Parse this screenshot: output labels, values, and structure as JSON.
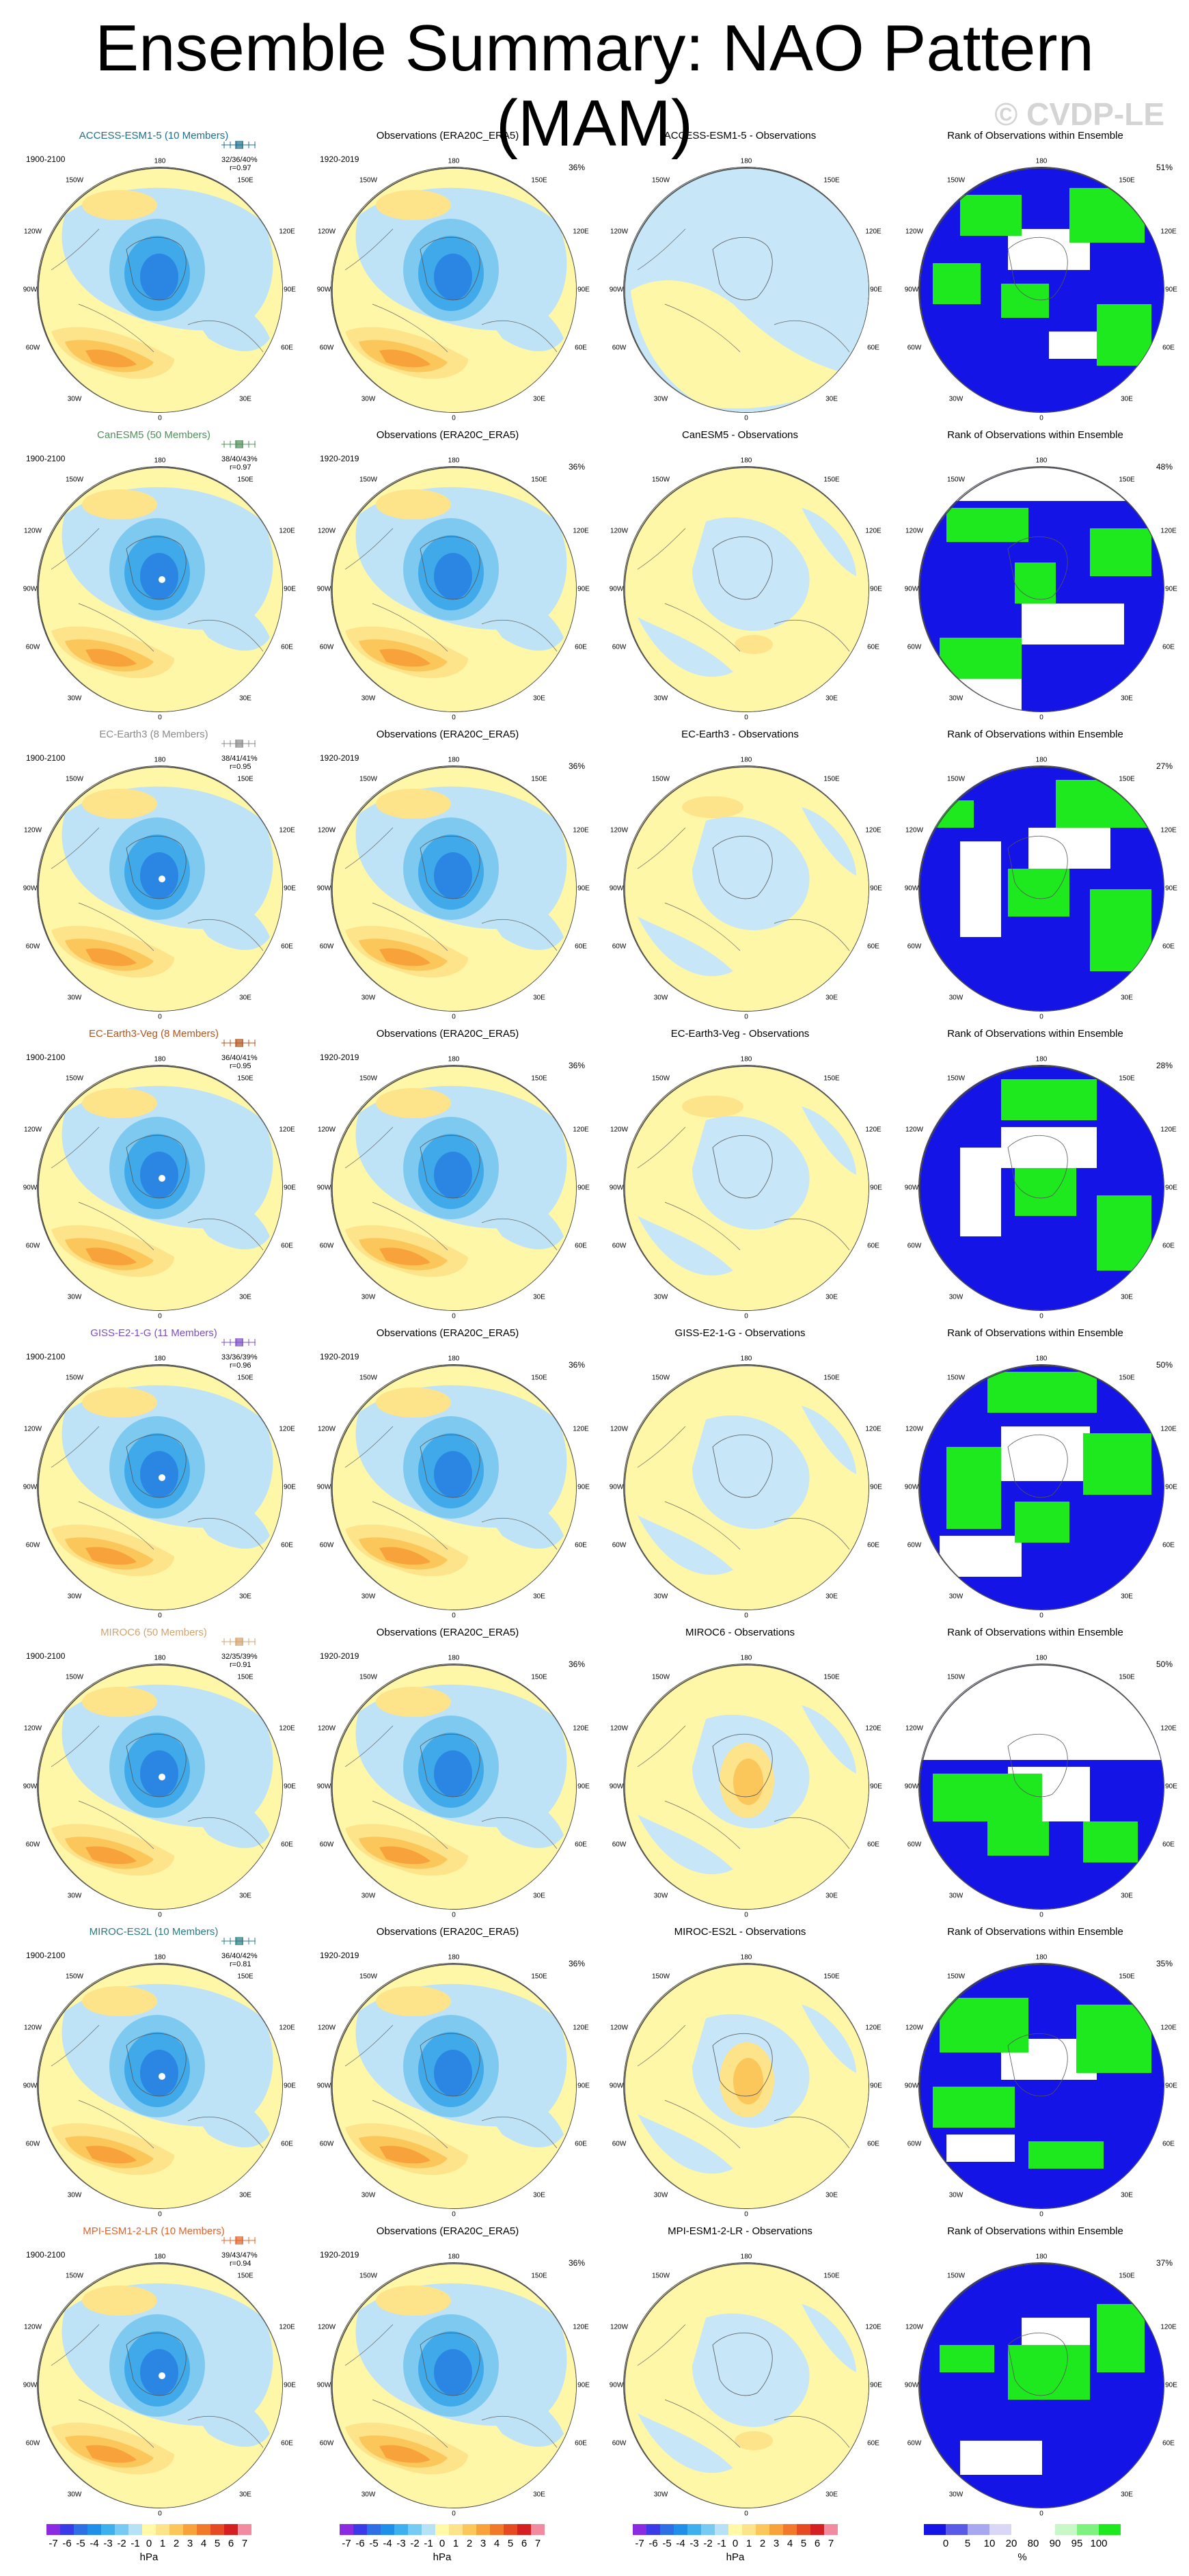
{
  "title": "Ensemble Summary: NAO Pattern (MAM)",
  "watermark": "© CVDP-LE",
  "axis_labels": [
    "180",
    "150W",
    "150E",
    "120W",
    "120E",
    "90W",
    "90E",
    "60W",
    "60E",
    "30W",
    "30E",
    "0"
  ],
  "common": {
    "obs_title": "Observations (ERA20C_ERA5)",
    "obs_years": "1920-2019",
    "obs_pct": "36%",
    "ens_years": "1900-2100",
    "rank_title": "Rank of Observations within Ensemble"
  },
  "rows": [
    {
      "model_title": "ACCESS-ESM1-5 (10 Members)",
      "title_color": "#1f6f8b",
      "stats1": "32/36/40%",
      "stats2": "r=0.97",
      "whisk_color": "#1f6f8b",
      "diff_title": "ACCESS-ESM1-5 - Observations",
      "rank_pct": "51%"
    },
    {
      "model_title": "CanESM5 (50 Members)",
      "title_color": "#4f8f5a",
      "stats1": "38/40/43%",
      "stats2": "r=0.97",
      "whisk_color": "#4f8f5a",
      "diff_title": "CanESM5 - Observations",
      "rank_pct": "48%"
    },
    {
      "model_title": "EC-Earth3 (8 Members)",
      "title_color": "#8a8a8a",
      "stats1": "38/41/41%",
      "stats2": "r=0.95",
      "whisk_color": "#8a8a8a",
      "diff_title": "EC-Earth3 - Observations",
      "rank_pct": "27%"
    },
    {
      "model_title": "EC-Earth3-Veg (8 Members)",
      "title_color": "#b4541c",
      "stats1": "36/40/41%",
      "stats2": "r=0.95",
      "whisk_color": "#b4541c",
      "diff_title": "EC-Earth3-Veg - Observations",
      "rank_pct": "28%"
    },
    {
      "model_title": "GISS-E2-1-G (11 Members)",
      "title_color": "#7a4fc4",
      "stats1": "33/36/39%",
      "stats2": "r=0.96",
      "whisk_color": "#7a4fc4",
      "diff_title": "GISS-E2-1-G - Observations",
      "rank_pct": "50%"
    },
    {
      "model_title": "MIROC6 (50 Members)",
      "title_color": "#d2a36e",
      "stats1": "32/35/39%",
      "stats2": "r=0.91",
      "whisk_color": "#d2a36e",
      "diff_title": "MIROC6 - Observations",
      "rank_pct": "50%"
    },
    {
      "model_title": "MIROC-ES2L (10 Members)",
      "title_color": "#2a7c84",
      "stats1": "36/40/42%",
      "stats2": "r=0.81",
      "whisk_color": "#2a7c84",
      "diff_title": "MIROC-ES2L - Observations",
      "rank_pct": "35%"
    },
    {
      "model_title": "MPI-ESM1-2-LR (10 Members)",
      "title_color": "#e0632b",
      "stats1": "39/43/47%",
      "stats2": "r=0.94",
      "whisk_color": "#e0632b",
      "diff_title": "MPI-ESM1-2-LR - Observations",
      "rank_pct": "37%"
    }
  ],
  "colorbar_hpa": {
    "colors": [
      "#8a2be2",
      "#3a3ae8",
      "#2f6fe6",
      "#1f8fe8",
      "#3fb0ee",
      "#77cbf2",
      "#b7e2f5",
      "#fff9a8",
      "#fde38a",
      "#fbc65a",
      "#f7a23a",
      "#f2782a",
      "#e64a22",
      "#d42020",
      "#f28aa0"
    ],
    "ticks": [
      "-7",
      "-6",
      "-5",
      "-4",
      "-3",
      "-2",
      "-1",
      "0",
      "1",
      "2",
      "3",
      "4",
      "5",
      "6",
      "7"
    ],
    "unit": "hPa"
  },
  "colorbar_rank": {
    "colors": [
      "#1414e6",
      "#5a5ae8",
      "#a8a8f0",
      "#d8d8f6",
      "#ffffff",
      "#ffffff",
      "#c8f8c8",
      "#7ef27e",
      "#1ee81e"
    ],
    "ticks": [
      "0",
      "5",
      "10",
      "20",
      "80",
      "90",
      "95",
      "100"
    ],
    "unit": "%"
  }
}
